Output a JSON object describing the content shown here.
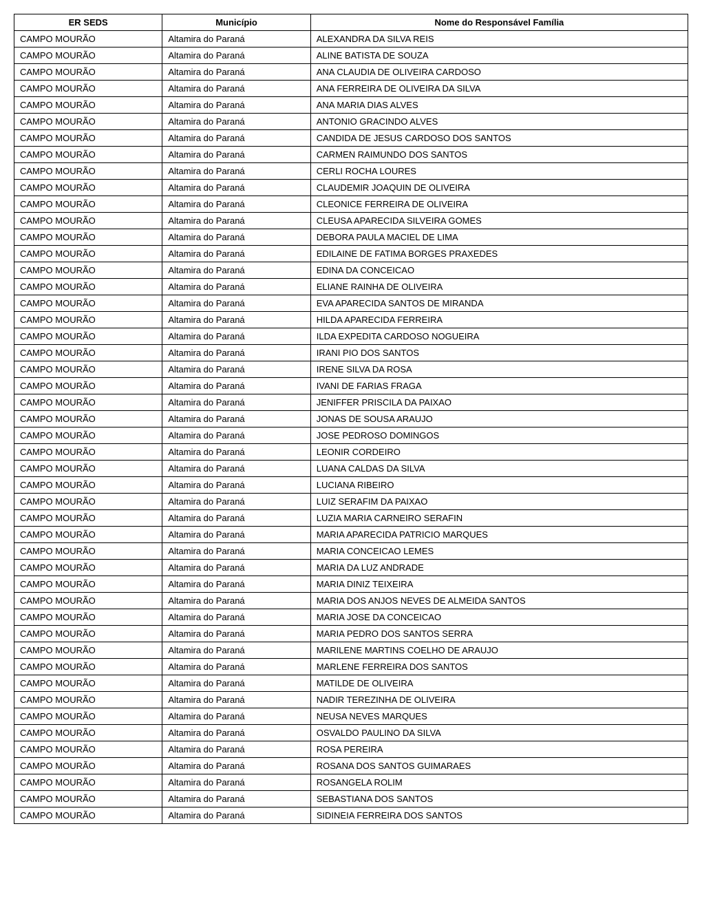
{
  "table": {
    "columns": [
      "ER SEDS",
      "Município",
      "Nome do Responsável Família"
    ],
    "column_widths": [
      "22%",
      "22%",
      "56%"
    ],
    "header_align": "center",
    "cell_align": "left",
    "border_color": "#000000",
    "background_color": "#ffffff",
    "font_size": 13,
    "header_font_weight": "bold",
    "rows": [
      [
        "CAMPO MOURÃO",
        "Altamira do Paraná",
        "ALEXANDRA DA SILVA REIS"
      ],
      [
        "CAMPO MOURÃO",
        "Altamira do Paraná",
        "ALINE BATISTA DE SOUZA"
      ],
      [
        "CAMPO MOURÃO",
        "Altamira do Paraná",
        "ANA CLAUDIA DE OLIVEIRA CARDOSO"
      ],
      [
        "CAMPO MOURÃO",
        "Altamira do Paraná",
        "ANA FERREIRA DE OLIVEIRA DA SILVA"
      ],
      [
        "CAMPO MOURÃO",
        "Altamira do Paraná",
        "ANA MARIA DIAS ALVES"
      ],
      [
        "CAMPO MOURÃO",
        "Altamira do Paraná",
        "ANTONIO GRACINDO ALVES"
      ],
      [
        "CAMPO MOURÃO",
        "Altamira do Paraná",
        "CANDIDA DE JESUS CARDOSO DOS SANTOS"
      ],
      [
        "CAMPO MOURÃO",
        "Altamira do Paraná",
        "CARMEN RAIMUNDO DOS SANTOS"
      ],
      [
        "CAMPO MOURÃO",
        "Altamira do Paraná",
        "CERLI ROCHA LOURES"
      ],
      [
        "CAMPO MOURÃO",
        "Altamira do Paraná",
        "CLAUDEMIR JOAQUIN DE OLIVEIRA"
      ],
      [
        "CAMPO MOURÃO",
        "Altamira do Paraná",
        "CLEONICE FERREIRA DE OLIVEIRA"
      ],
      [
        "CAMPO MOURÃO",
        "Altamira do Paraná",
        "CLEUSA APARECIDA SILVEIRA GOMES"
      ],
      [
        "CAMPO MOURÃO",
        "Altamira do Paraná",
        "DEBORA PAULA MACIEL DE LIMA"
      ],
      [
        "CAMPO MOURÃO",
        "Altamira do Paraná",
        "EDILAINE DE FATIMA BORGES PRAXEDES"
      ],
      [
        "CAMPO MOURÃO",
        "Altamira do Paraná",
        "EDINA DA CONCEICAO"
      ],
      [
        "CAMPO MOURÃO",
        "Altamira do Paraná",
        "ELIANE RAINHA DE OLIVEIRA"
      ],
      [
        "CAMPO MOURÃO",
        "Altamira do Paraná",
        "EVA APARECIDA SANTOS DE MIRANDA"
      ],
      [
        "CAMPO MOURÃO",
        "Altamira do Paraná",
        "HILDA APARECIDA FERREIRA"
      ],
      [
        "CAMPO MOURÃO",
        "Altamira do Paraná",
        "ILDA EXPEDITA CARDOSO NOGUEIRA"
      ],
      [
        "CAMPO MOURÃO",
        "Altamira do Paraná",
        "IRANI PIO DOS SANTOS"
      ],
      [
        "CAMPO MOURÃO",
        "Altamira do Paraná",
        "IRENE SILVA DA ROSA"
      ],
      [
        "CAMPO MOURÃO",
        "Altamira do Paraná",
        "IVANI DE FARIAS FRAGA"
      ],
      [
        "CAMPO MOURÃO",
        "Altamira do Paraná",
        "JENIFFER PRISCILA DA PAIXAO"
      ],
      [
        "CAMPO MOURÃO",
        "Altamira do Paraná",
        "JONAS DE SOUSA ARAUJO"
      ],
      [
        "CAMPO MOURÃO",
        "Altamira do Paraná",
        "JOSE PEDROSO DOMINGOS"
      ],
      [
        "CAMPO MOURÃO",
        "Altamira do Paraná",
        "LEONIR CORDEIRO"
      ],
      [
        "CAMPO MOURÃO",
        "Altamira do Paraná",
        "LUANA CALDAS DA SILVA"
      ],
      [
        "CAMPO MOURÃO",
        "Altamira do Paraná",
        "LUCIANA RIBEIRO"
      ],
      [
        "CAMPO MOURÃO",
        "Altamira do Paraná",
        "LUIZ SERAFIM DA PAIXAO"
      ],
      [
        "CAMPO MOURÃO",
        "Altamira do Paraná",
        "LUZIA MARIA CARNEIRO SERAFIN"
      ],
      [
        "CAMPO MOURÃO",
        "Altamira do Paraná",
        "MARIA APARECIDA PATRICIO MARQUES"
      ],
      [
        "CAMPO MOURÃO",
        "Altamira do Paraná",
        "MARIA CONCEICAO LEMES"
      ],
      [
        "CAMPO MOURÃO",
        "Altamira do Paraná",
        "MARIA DA LUZ ANDRADE"
      ],
      [
        "CAMPO MOURÃO",
        "Altamira do Paraná",
        "MARIA DINIZ TEIXEIRA"
      ],
      [
        "CAMPO MOURÃO",
        "Altamira do Paraná",
        "MARIA DOS ANJOS NEVES DE ALMEIDA SANTOS"
      ],
      [
        "CAMPO MOURÃO",
        "Altamira do Paraná",
        "MARIA JOSE DA CONCEICAO"
      ],
      [
        "CAMPO MOURÃO",
        "Altamira do Paraná",
        "MARIA PEDRO DOS SANTOS SERRA"
      ],
      [
        "CAMPO MOURÃO",
        "Altamira do Paraná",
        "MARILENE MARTINS COELHO DE ARAUJO"
      ],
      [
        "CAMPO MOURÃO",
        "Altamira do Paraná",
        "MARLENE FERREIRA DOS SANTOS"
      ],
      [
        "CAMPO MOURÃO",
        "Altamira do Paraná",
        "MATILDE DE OLIVEIRA"
      ],
      [
        "CAMPO MOURÃO",
        "Altamira do Paraná",
        "NADIR TEREZINHA DE OLIVEIRA"
      ],
      [
        "CAMPO MOURÃO",
        "Altamira do Paraná",
        "NEUSA NEVES MARQUES"
      ],
      [
        "CAMPO MOURÃO",
        "Altamira do Paraná",
        "OSVALDO PAULINO DA SILVA"
      ],
      [
        "CAMPO MOURÃO",
        "Altamira do Paraná",
        "ROSA PEREIRA"
      ],
      [
        "CAMPO MOURÃO",
        "Altamira do Paraná",
        "ROSANA DOS SANTOS GUIMARAES"
      ],
      [
        "CAMPO MOURÃO",
        "Altamira do Paraná",
        "ROSANGELA ROLIM"
      ],
      [
        "CAMPO MOURÃO",
        "Altamira do Paraná",
        "SEBASTIANA DOS SANTOS"
      ],
      [
        "CAMPO MOURÃO",
        "Altamira do Paraná",
        "SIDINEIA FERREIRA DOS SANTOS"
      ]
    ]
  }
}
